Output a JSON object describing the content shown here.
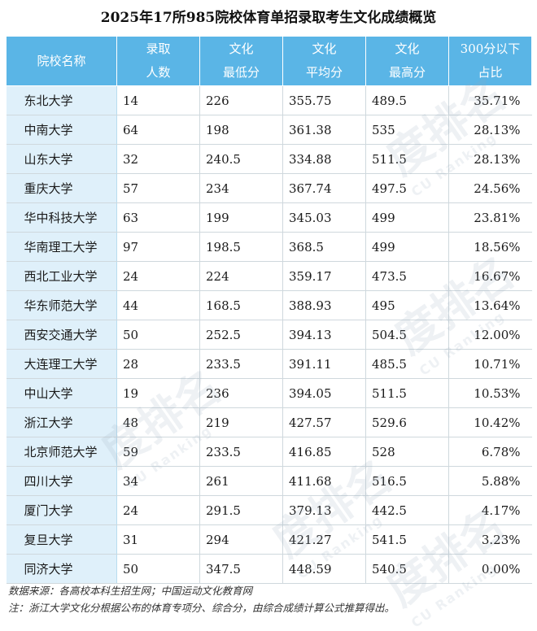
{
  "title": "2025年17所985院校体育单招录取考生文化成绩概览",
  "headers": [
    {
      "l1": "院校名称",
      "l2": ""
    },
    {
      "l1": "录取",
      "l2": "人数"
    },
    {
      "l1": "文化",
      "l2": "最低分"
    },
    {
      "l1": "文化",
      "l2": "平均分"
    },
    {
      "l1": "文化",
      "l2": "最高分"
    },
    {
      "l1": "300分以下",
      "l2": "占比"
    }
  ],
  "rows": [
    [
      "东北大学",
      "14",
      "226",
      "355.75",
      "489.5",
      "35.71%"
    ],
    [
      "中南大学",
      "64",
      "198",
      "361.38",
      "535",
      "28.13%"
    ],
    [
      "山东大学",
      "32",
      "240.5",
      "334.88",
      "511.5",
      "28.13%"
    ],
    [
      "重庆大学",
      "57",
      "234",
      "367.74",
      "497.5",
      "24.56%"
    ],
    [
      "华中科技大学",
      "63",
      "199",
      "345.03",
      "499",
      "23.81%"
    ],
    [
      "华南理工大学",
      "97",
      "198.5",
      "368.5",
      "499",
      "18.56%"
    ],
    [
      "西北工业大学",
      "24",
      "224",
      "359.17",
      "473.5",
      "16.67%"
    ],
    [
      "华东师范大学",
      "44",
      "168.5",
      "388.93",
      "495",
      "13.64%"
    ],
    [
      "西安交通大学",
      "50",
      "252.5",
      "394.13",
      "504.5",
      "12.00%"
    ],
    [
      "大连理工大学",
      "28",
      "233.5",
      "391.11",
      "485.5",
      "10.71%"
    ],
    [
      "中山大学",
      "19",
      "236",
      "394.05",
      "511.5",
      "10.53%"
    ],
    [
      "浙江大学",
      "48",
      "219",
      "427.57",
      "529.6",
      "10.42%"
    ],
    [
      "北京师范大学",
      "59",
      "233.5",
      "416.85",
      "528",
      "6.78%"
    ],
    [
      "四川大学",
      "34",
      "261",
      "411.68",
      "516.5",
      "5.88%"
    ],
    [
      "厦门大学",
      "24",
      "291.5",
      "379.13",
      "442.5",
      "4.17%"
    ],
    [
      "复旦大学",
      "31",
      "294",
      "421.27",
      "541.5",
      "3.23%"
    ],
    [
      "同济大学",
      "50",
      "347.5",
      "448.59",
      "540.5",
      "0.00%"
    ]
  ],
  "footer": {
    "source": "数据来源：各高校本科生招生网；中国运动文化教育网",
    "note": "注：浙江大学文化分根据公布的体育专项分、综合分，由综合成绩计算公式推算得出。"
  },
  "watermark": {
    "text": "度排名",
    "sub": "CU Ranking"
  }
}
